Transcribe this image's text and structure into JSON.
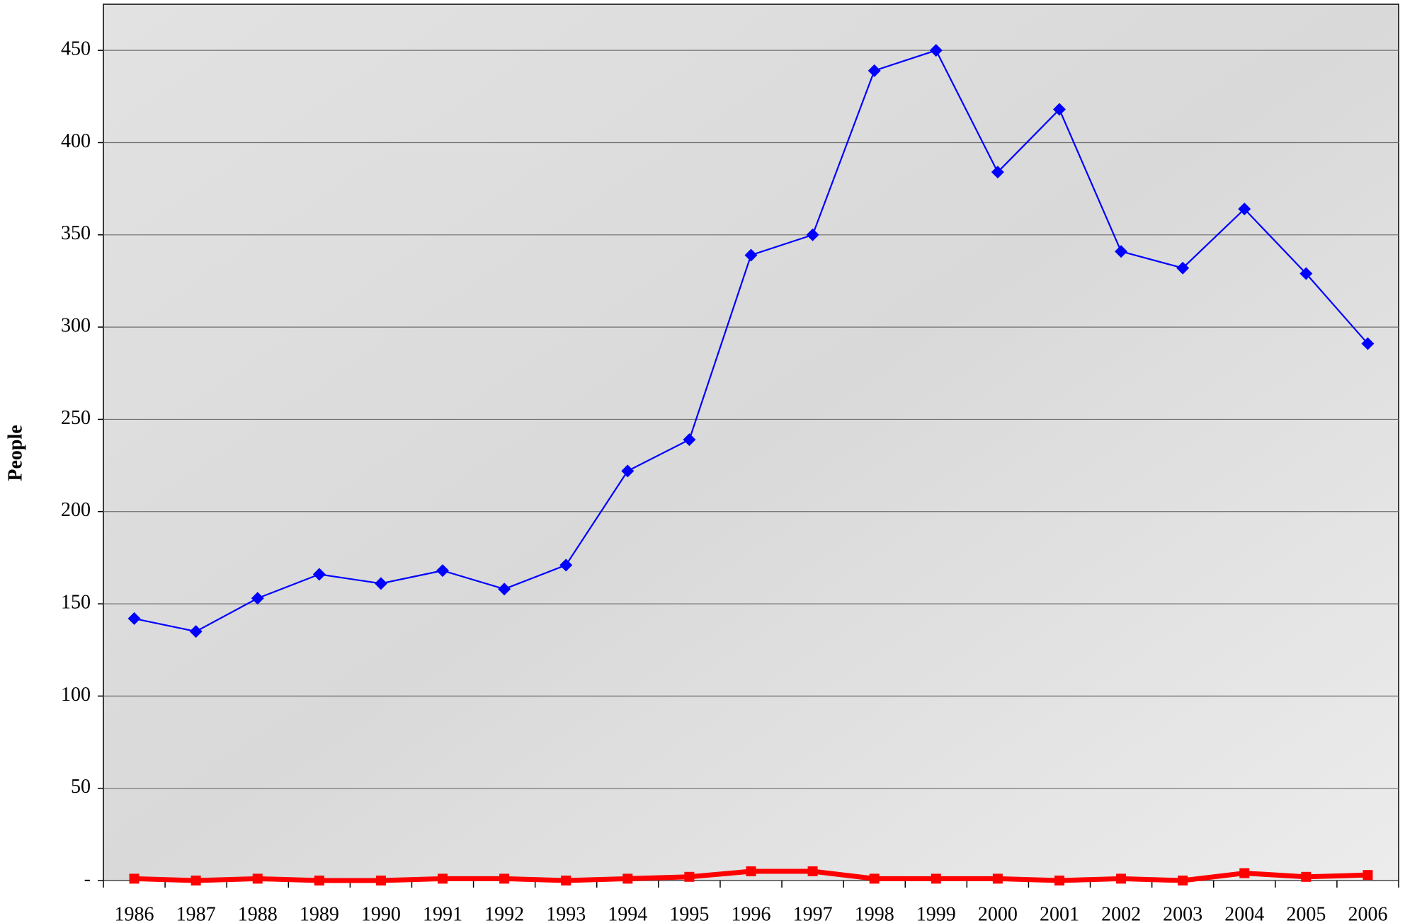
{
  "chart_data": {
    "type": "line",
    "y_label": "People",
    "categories": [
      "1986",
      "1987",
      "1988",
      "1989",
      "1990",
      "1991",
      "1992",
      "1993",
      "1994",
      "1995",
      "1996",
      "1997",
      "1998",
      "1999",
      "2000",
      "2001",
      "2002",
      "2003",
      "2004",
      "2005",
      "2006"
    ],
    "series": [
      {
        "color": "#0000ff",
        "marker": "diamond",
        "values": [
          142,
          135,
          153,
          166,
          161,
          168,
          158,
          171,
          222,
          239,
          339,
          350,
          439,
          450,
          384,
          418,
          341,
          332,
          364,
          329,
          291
        ]
      },
      {
        "color": "#ff0000",
        "marker": "square",
        "values": [
          1,
          0,
          1,
          0,
          0,
          1,
          1,
          0,
          1,
          2,
          5,
          5,
          1,
          1,
          1,
          0,
          1,
          0,
          4,
          2,
          3
        ]
      }
    ],
    "ylim": [
      0,
      475
    ],
    "yticks": [
      {
        "value": 0,
        "label": "-"
      },
      50,
      100,
      150,
      200,
      250,
      300,
      350,
      400,
      450
    ],
    "grid": true
  }
}
